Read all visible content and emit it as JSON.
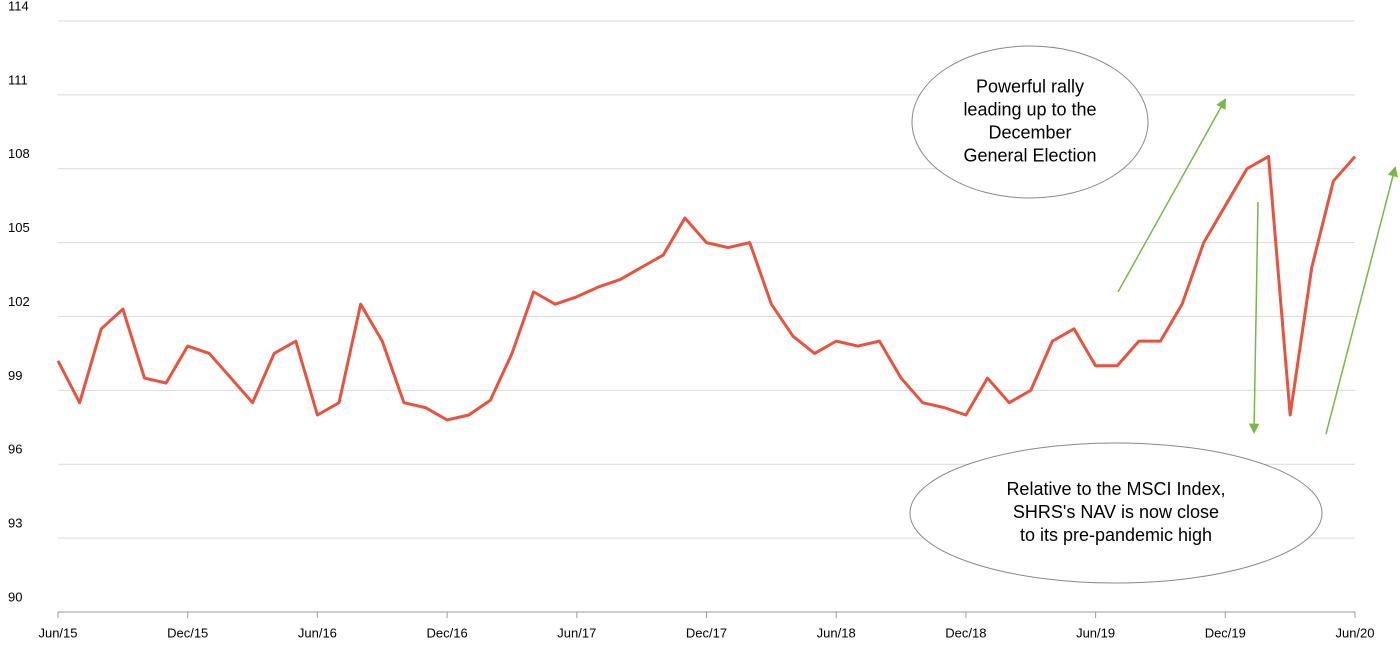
{
  "chart_data": {
    "type": "line",
    "x": [
      "2015-06",
      "2015-07",
      "2015-08",
      "2015-09",
      "2015-10",
      "2015-11",
      "2015-12",
      "2016-01",
      "2016-02",
      "2016-03",
      "2016-04",
      "2016-05",
      "2016-06",
      "2016-07",
      "2016-08",
      "2016-09",
      "2016-10",
      "2016-11",
      "2016-12",
      "2017-01",
      "2017-02",
      "2017-03",
      "2017-04",
      "2017-05",
      "2017-06",
      "2017-07",
      "2017-08",
      "2017-09",
      "2017-10",
      "2017-11",
      "2017-12",
      "2018-01",
      "2018-02",
      "2018-03",
      "2018-04",
      "2018-05",
      "2018-06",
      "2018-07",
      "2018-08",
      "2018-09",
      "2018-10",
      "2018-11",
      "2018-12",
      "2019-01",
      "2019-02",
      "2019-03",
      "2019-04",
      "2019-05",
      "2019-06",
      "2019-07",
      "2019-08",
      "2019-09",
      "2019-10",
      "2019-11",
      "2019-12",
      "2020-01",
      "2020-02",
      "2020-03",
      "2020-04",
      "2020-05",
      "2020-06"
    ],
    "series": [
      {
        "color": "#e8533f",
        "values": [
          100.2,
          98.5,
          101.5,
          102.3,
          99.5,
          99.3,
          100.8,
          100.5,
          99.5,
          98.5,
          100.5,
          101,
          98,
          98.5,
          102.5,
          101,
          98.5,
          98.3,
          97.8,
          98,
          98.6,
          100.5,
          103,
          102.5,
          102.8,
          103.2,
          103.5,
          104,
          104.5,
          106,
          105,
          104.8,
          105,
          102.5,
          101.2,
          100.5,
          101,
          100.8,
          101,
          99.5,
          98.5,
          98.3,
          98,
          99.5,
          98.5,
          99,
          101,
          101.5,
          100,
          100,
          101,
          101,
          102.5,
          105,
          106.5,
          108,
          108.5,
          98,
          104,
          107.5,
          108.5
        ]
      }
    ],
    "xticks": [
      {
        "value": "2015-06",
        "label": "Jun/15"
      },
      {
        "value": "2015-12",
        "label": "Dec/15"
      },
      {
        "value": "2016-06",
        "label": "Jun/16"
      },
      {
        "value": "2016-12",
        "label": "Dec/16"
      },
      {
        "value": "2017-06",
        "label": "Jun/17"
      },
      {
        "value": "2017-12",
        "label": "Dec/17"
      },
      {
        "value": "2018-06",
        "label": "Jun/18"
      },
      {
        "value": "2018-12",
        "label": "Dec/18"
      },
      {
        "value": "2019-06",
        "label": "Jun/19"
      },
      {
        "value": "2019-12",
        "label": "Dec/19"
      },
      {
        "value": "2020-06",
        "label": "Jun/20"
      }
    ],
    "ylim": [
      90,
      114
    ],
    "yticks": [
      90,
      93,
      96,
      99,
      102,
      105,
      108,
      111,
      114
    ],
    "grid": true,
    "annotations": [
      {
        "lines": [
          "Powerful rally",
          "leading up to the",
          "December",
          "General Election"
        ]
      },
      {
        "lines": [
          "Relative to the MSCI Index,",
          "SHRS's NAV is now close",
          "to its pre-pandemic high"
        ]
      }
    ]
  }
}
